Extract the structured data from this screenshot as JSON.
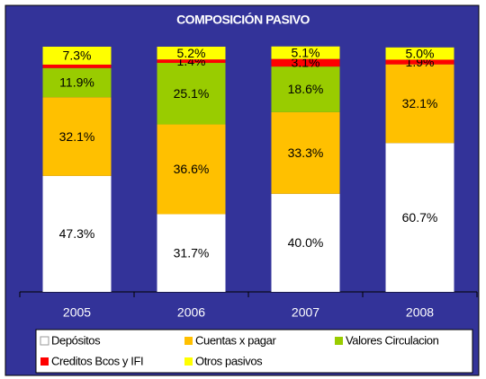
{
  "chart_data": {
    "type": "stacked_bar",
    "title": "COMPOSICIÓN PASIVO",
    "categories": [
      "2005",
      "2006",
      "2007",
      "2008"
    ],
    "series": [
      {
        "name": "Depósitos",
        "color": "#ffffff",
        "values": [
          47.3,
          31.7,
          40.0,
          60.7
        ],
        "value_labels": [
          "47.3%",
          "31.7%",
          "40.0%",
          "60.7%"
        ]
      },
      {
        "name": "Cuentas x pagar",
        "color": "#ffc000",
        "values": [
          32.1,
          36.6,
          33.3,
          32.1
        ],
        "value_labels": [
          "32.1%",
          "36.6%",
          "33.3%",
          "32.1%"
        ]
      },
      {
        "name": "Valores Circulacion",
        "color": "#99cc00",
        "values": [
          11.9,
          25.1,
          18.6,
          0
        ],
        "value_labels": [
          "11.9%",
          "25.1%",
          "18.6%",
          null
        ]
      },
      {
        "name": "Creditos Bcos y IFI",
        "color": "#ff0000",
        "values": [
          1.4,
          1.4,
          3.1,
          1.9
        ],
        "value_labels": [
          null,
          "1.4%",
          "3.1%",
          "1.9%"
        ]
      },
      {
        "name": "Otros pasivos",
        "color": "#ffff00",
        "values": [
          7.3,
          5.2,
          5.1,
          5.0
        ],
        "value_labels": [
          "7.3%",
          "5.2%",
          "5.1%",
          "5.0%"
        ]
      }
    ],
    "ylim": [
      0,
      100
    ],
    "background": "#333399"
  }
}
